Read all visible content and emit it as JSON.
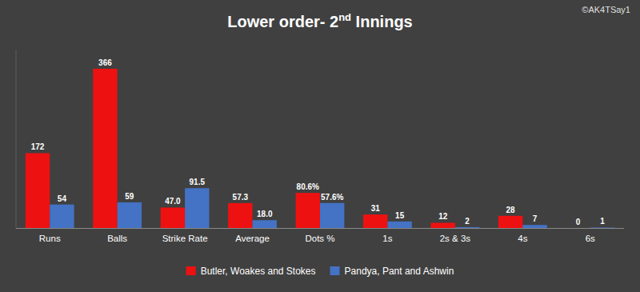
{
  "chart_data": {
    "type": "bar",
    "title": "Lower order- 2nd Innings",
    "annotations": [
      "©AK4TSay1"
    ],
    "categories": [
      "Runs",
      "Balls",
      "Strike Rate",
      "Average",
      "Dots %",
      "1s",
      "2s & 3s",
      "4s",
      "6s"
    ],
    "series": [
      {
        "name": "Butler, Woakes and Stokes",
        "color": "#ee1111",
        "values": [
          172,
          366,
          47.0,
          57.3,
          80.6,
          31,
          12,
          28,
          0.001
        ],
        "value_labels": [
          "172",
          "366",
          "47.0",
          "57.3",
          "80.6%",
          "31",
          "12",
          "28",
          "0"
        ]
      },
      {
        "name": "Pandya, Pant and Ashwin",
        "color": "#4472c4",
        "values": [
          54,
          59,
          91.5,
          18.0,
          57.6,
          15,
          2,
          7,
          1
        ],
        "value_labels": [
          "54",
          "59",
          "91.5",
          "18.0",
          "57.6%",
          "15",
          "2",
          "7",
          "1"
        ]
      }
    ],
    "ylim": [
      0,
      410
    ],
    "grid": false,
    "legend": "bottom",
    "data_labels": true,
    "tick_labels": "x"
  }
}
